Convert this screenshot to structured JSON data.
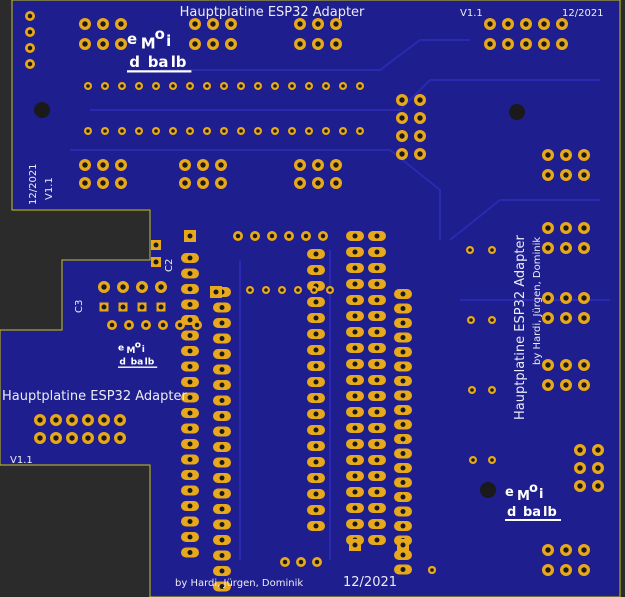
{
  "board": {
    "top_title": "Hauptplatine ESP32 Adapter",
    "top_version": "V1.1",
    "top_date": "12/2021",
    "left_date": "12/2021",
    "left_version": "V1.1",
    "c2": "C2",
    "c3": "C3",
    "side_title": "Hauptplatine ESP32 Adapter",
    "side_version": "V1.1",
    "right_title": "Hauptplatine ESP32 Adapter",
    "right_authors": "by Hardi, Jürgen, Dominik",
    "bottom_authors": "by Hardi, Jürgen, Dominik",
    "bottom_date": "12/2021",
    "logo": {
      "e": "e",
      "m": "M",
      "o": "o",
      "i": "i",
      "d": "d",
      "ba": "ba",
      "lb": "lb"
    }
  }
}
